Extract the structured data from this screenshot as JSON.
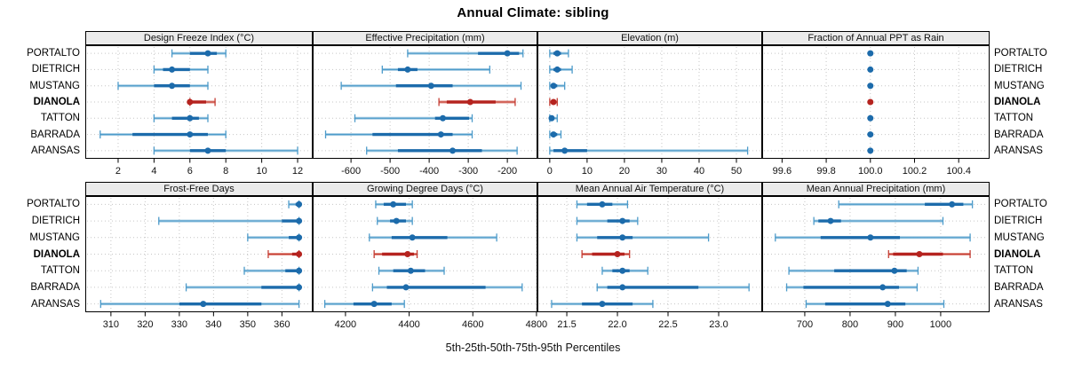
{
  "title": "Annual Climate: sibling",
  "caption": "5th-25th-50th-75th-95th Percentiles",
  "sites": [
    "PORTALTO",
    "DIETRICH",
    "MUSTANG",
    "DIANOLA",
    "TATTON",
    "BARRADA",
    "ARANSAS"
  ],
  "highlight_site": "DIANOLA",
  "colors": {
    "blue_light": "#92c1de",
    "blue_mid": "#4d9bca",
    "blue_dark": "#1c6bab",
    "red_light": "#dd7a6e",
    "red_mid": "#c43d33",
    "red_dark": "#b5231f",
    "strip_bg": "#ebebeb",
    "grid": "#c6c6c6",
    "border": "#000000"
  },
  "chart_data": [
    {
      "type": "scatter",
      "subtype": "percentile-interval-dotplot",
      "title": "Design Freeze Index (°C)",
      "xlim": [
        0.17,
        12.84
      ],
      "ticks": [
        2,
        4,
        6,
        8,
        10,
        12
      ],
      "tick_labels": [
        "2",
        "4",
        "6",
        "8",
        "10",
        "12"
      ],
      "percentiles": [
        5,
        25,
        50,
        75,
        95
      ],
      "values": {
        "PORTALTO": [
          5,
          6,
          7,
          7.5,
          8
        ],
        "DIETRICH": [
          4,
          4.5,
          5,
          6,
          7
        ],
        "MUSTANG": [
          2,
          4,
          5,
          6,
          7
        ],
        "DIANOLA": [
          6,
          6,
          6,
          6.9,
          7.4
        ],
        "TATTON": [
          4,
          5,
          6,
          6.5,
          7
        ],
        "BARRADA": [
          1,
          2.8,
          6,
          7,
          8
        ],
        "ARANSAS": [
          4,
          6,
          7,
          8,
          12
        ]
      }
    },
    {
      "type": "scatter",
      "subtype": "percentile-interval-dotplot",
      "title": "Effective Precipitation (mm)",
      "xlim": [
        -698,
        -123
      ],
      "ticks": [
        -600,
        -500,
        -400,
        -300,
        -200
      ],
      "tick_labels": [
        "-600",
        "-500",
        "-400",
        "-300",
        "-200"
      ],
      "percentiles": [
        5,
        25,
        50,
        75,
        95
      ],
      "values": {
        "PORTALTO": [
          -455,
          -275,
          -200,
          -170,
          -160
        ],
        "DIETRICH": [
          -520,
          -480,
          -455,
          -430,
          -245
        ],
        "MUSTANG": [
          -625,
          -485,
          -395,
          -340,
          -165
        ],
        "DIANOLA": [
          -375,
          -355,
          -295,
          -230,
          -180
        ],
        "TATTON": [
          -590,
          -385,
          -365,
          -298,
          -290
        ],
        "BARRADA": [
          -665,
          -545,
          -370,
          -340,
          -290
        ],
        "ARANSAS": [
          -560,
          -480,
          -340,
          -265,
          -175
        ]
      }
    },
    {
      "type": "scatter",
      "subtype": "percentile-interval-dotplot",
      "title": "Elevation (m)",
      "xlim": [
        -3.3,
        56.9
      ],
      "ticks": [
        0,
        10,
        20,
        30,
        40,
        50
      ],
      "tick_labels": [
        "0",
        "10",
        "20",
        "30",
        "40",
        "50"
      ],
      "percentiles": [
        5,
        25,
        50,
        75,
        95
      ],
      "values": {
        "PORTALTO": [
          0,
          1,
          2,
          3,
          5
        ],
        "DIETRICH": [
          0,
          1,
          2,
          3,
          6
        ],
        "MUSTANG": [
          0,
          0.5,
          1,
          2,
          4
        ],
        "DIANOLA": [
          0,
          0.5,
          1,
          1.5,
          2
        ],
        "TATTON": [
          0,
          0,
          0.5,
          1,
          2
        ],
        "BARRADA": [
          0,
          0.5,
          1,
          2,
          3
        ],
        "ARANSAS": [
          0,
          1,
          4,
          10,
          53
        ]
      }
    },
    {
      "type": "scatter",
      "subtype": "percentile-interval-dotplot",
      "title": "Fraction of Annual PPT as Rain",
      "xlim": [
        99.51,
        100.54
      ],
      "ticks": [
        99.6,
        99.8,
        100.0,
        100.2,
        100.4
      ],
      "tick_labels": [
        "99.6",
        "99.8",
        "100.0",
        "100.2",
        "100.4"
      ],
      "percentiles": [
        5,
        25,
        50,
        75,
        95
      ],
      "values": {
        "PORTALTO": [
          100,
          100,
          100,
          100,
          100
        ],
        "DIETRICH": [
          100,
          100,
          100,
          100,
          100
        ],
        "MUSTANG": [
          100,
          100,
          100,
          100,
          100
        ],
        "DIANOLA": [
          100,
          100,
          100,
          100,
          100
        ],
        "TATTON": [
          100,
          100,
          100,
          100,
          100
        ],
        "BARRADA": [
          100,
          100,
          100,
          100,
          100
        ],
        "ARANSAS": [
          100,
          100,
          100,
          100,
          100
        ]
      }
    },
    {
      "type": "scatter",
      "subtype": "percentile-interval-dotplot",
      "title": "Frost-Free Days",
      "xlim": [
        302.5,
        369
      ],
      "ticks": [
        310,
        320,
        330,
        340,
        350,
        360
      ],
      "tick_labels": [
        "310",
        "320",
        "330",
        "340",
        "350",
        "360"
      ],
      "percentiles": [
        5,
        25,
        50,
        75,
        95
      ],
      "values": {
        "PORTALTO": [
          362,
          364,
          365,
          365,
          365
        ],
        "DIETRICH": [
          324,
          360,
          365,
          365,
          365
        ],
        "MUSTANG": [
          350,
          362,
          365,
          365,
          365
        ],
        "DIANOLA": [
          356,
          363,
          365,
          365,
          365
        ],
        "TATTON": [
          349,
          361,
          365,
          365,
          365
        ],
        "BARRADA": [
          332,
          354,
          365,
          365,
          365
        ],
        "ARANSAS": [
          307,
          330,
          337,
          354,
          365
        ]
      }
    },
    {
      "type": "scatter",
      "subtype": "percentile-interval-dotplot",
      "title": "Growing Degree Days (°C)",
      "xlim": [
        4097,
        4803
      ],
      "ticks": [
        4200,
        4400,
        4600,
        4800
      ],
      "tick_labels": [
        "4200",
        "4400",
        "4600",
        "4800"
      ],
      "percentiles": [
        5,
        25,
        50,
        75,
        95
      ],
      "values": {
        "PORTALTO": [
          4295,
          4320,
          4350,
          4390,
          4410
        ],
        "DIETRICH": [
          4300,
          4340,
          4360,
          4390,
          4410
        ],
        "MUSTANG": [
          4275,
          4345,
          4410,
          4520,
          4675
        ],
        "DIANOLA": [
          4290,
          4315,
          4395,
          4415,
          4425
        ],
        "TATTON": [
          4305,
          4350,
          4405,
          4450,
          4510
        ],
        "BARRADA": [
          4285,
          4330,
          4390,
          4640,
          4755
        ],
        "ARANSAS": [
          4135,
          4225,
          4290,
          4345,
          4385
        ]
      }
    },
    {
      "type": "scatter",
      "subtype": "percentile-interval-dotplot",
      "title": "Mean Annual Air Temperature (°C)",
      "xlim": [
        21.21,
        23.43
      ],
      "ticks": [
        21.5,
        22.0,
        22.5,
        23.0
      ],
      "tick_labels": [
        "21.5",
        "22.0",
        "22.5",
        "23.0"
      ],
      "percentiles": [
        5,
        25,
        50,
        75,
        95
      ],
      "values": {
        "PORTALTO": [
          21.6,
          21.7,
          21.85,
          21.95,
          22.1
        ],
        "DIETRICH": [
          21.6,
          21.9,
          22.05,
          22.12,
          22.2
        ],
        "MUSTANG": [
          21.6,
          21.8,
          22.05,
          22.15,
          22.9
        ],
        "DIANOLA": [
          21.65,
          21.75,
          22.0,
          22.07,
          22.12
        ],
        "TATTON": [
          21.85,
          21.95,
          22.05,
          22.12,
          22.3
        ],
        "BARRADA": [
          21.8,
          21.9,
          22.05,
          22.8,
          23.3
        ],
        "ARANSAS": [
          21.35,
          21.65,
          21.85,
          22.15,
          22.35
        ]
      }
    },
    {
      "type": "scatter",
      "subtype": "percentile-interval-dotplot",
      "title": "Mean Annual Precipitation (mm)",
      "xlim": [
        606,
        1108
      ],
      "ticks": [
        700,
        800,
        900,
        1000
      ],
      "tick_labels": [
        "700",
        "800",
        "900",
        "1000"
      ],
      "percentiles": [
        5,
        25,
        50,
        75,
        95
      ],
      "values": {
        "PORTALTO": [
          775,
          965,
          1025,
          1050,
          1070
        ],
        "DIETRICH": [
          720,
          730,
          757,
          780,
          1005
        ],
        "MUSTANG": [
          635,
          735,
          845,
          910,
          1065
        ],
        "DIANOLA": [
          885,
          895,
          953,
          1005,
          1065
        ],
        "TATTON": [
          665,
          765,
          898,
          925,
          950
        ],
        "BARRADA": [
          660,
          697,
          872,
          908,
          948
        ],
        "ARANSAS": [
          703,
          745,
          883,
          922,
          1007
        ]
      }
    }
  ]
}
